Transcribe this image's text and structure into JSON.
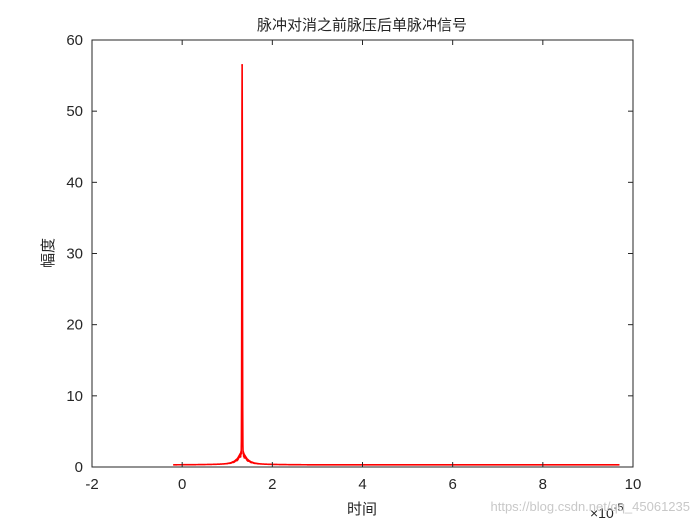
{
  "chart_data": {
    "type": "line",
    "title": "脉冲对消之前脉压后单脉冲信号",
    "xlabel": "时间",
    "ylabel": "幅度",
    "xlim": [
      -2e-05,
      0.0001
    ],
    "ylim": [
      0,
      60
    ],
    "x_ticks": [
      -2e-05,
      0,
      2e-05,
      4e-05,
      6e-05,
      8e-05,
      0.0001
    ],
    "x_tick_labels": [
      "-2",
      "0",
      "2",
      "4",
      "6",
      "8",
      "10"
    ],
    "y_ticks": [
      0,
      10,
      20,
      30,
      40,
      50,
      60
    ],
    "y_tick_labels": [
      "0",
      "10",
      "20",
      "30",
      "40",
      "50",
      "60"
    ],
    "x_exponent": {
      "base": "×10",
      "power": "-5"
    },
    "grid": false,
    "series": [
      {
        "color": "#ff0000",
        "x_start": -2e-06,
        "x_end": 9.7e-05,
        "peak_x": 1.33e-05,
        "peak_y": 56.5,
        "baseline": 0.3
      }
    ]
  },
  "watermark": "https://blog.csdn.net/qq_45061235"
}
